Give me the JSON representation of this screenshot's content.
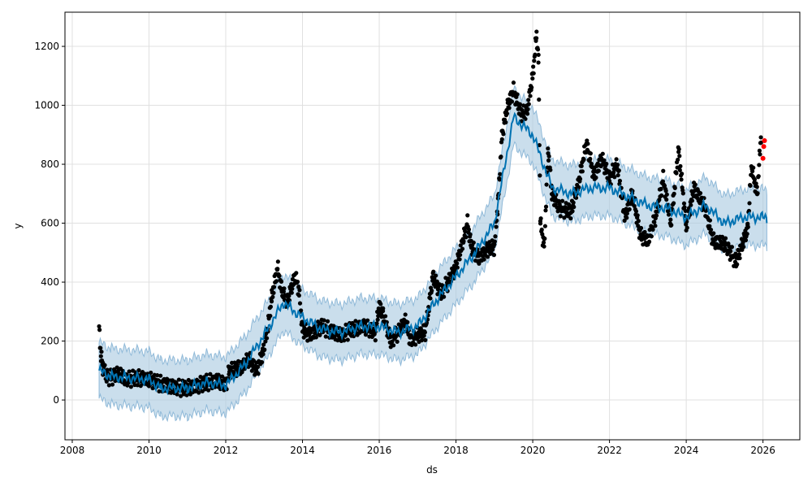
{
  "chart_data": {
    "type": "line",
    "title": "",
    "xlabel": "ds",
    "ylabel": "y",
    "xlim": [
      2007.81,
      2026.96
    ],
    "ylim": [
      -135,
      1316
    ],
    "grid": true,
    "xticks": [
      2008,
      2010,
      2012,
      2014,
      2016,
      2018,
      2020,
      2022,
      2024,
      2026
    ],
    "xtick_labels": [
      "2008",
      "2010",
      "2012",
      "2014",
      "2016",
      "2018",
      "2020",
      "2022",
      "2024",
      "2026"
    ],
    "yticks": [
      0,
      200,
      400,
      600,
      800,
      1000,
      1200
    ],
    "ytick_labels": [
      "0",
      "200",
      "400",
      "600",
      "800",
      "1000",
      "1200"
    ],
    "colors": {
      "observed": "#000000",
      "test": "#ff0000",
      "forecast": "#0072B2",
      "interval": "#a6c8e0"
    },
    "interval_halfwidth": 95,
    "observed": [
      [
        2008.7,
        240
      ],
      [
        2008.75,
        150
      ],
      [
        2008.8,
        110
      ],
      [
        2008.9,
        80
      ],
      [
        2009.0,
        75
      ],
      [
        2009.2,
        90
      ],
      [
        2009.4,
        70
      ],
      [
        2009.7,
        75
      ],
      [
        2010.0,
        70
      ],
      [
        2010.3,
        55
      ],
      [
        2010.6,
        45
      ],
      [
        2010.9,
        40
      ],
      [
        2011.2,
        45
      ],
      [
        2011.5,
        60
      ],
      [
        2011.8,
        65
      ],
      [
        2012.0,
        50
      ],
      [
        2012.1,
        100
      ],
      [
        2012.4,
        110
      ],
      [
        2012.6,
        140
      ],
      [
        2012.8,
        100
      ],
      [
        2012.95,
        150
      ],
      [
        2013.1,
        250
      ],
      [
        2013.2,
        350
      ],
      [
        2013.35,
        450
      ],
      [
        2013.45,
        380
      ],
      [
        2013.6,
        330
      ],
      [
        2013.8,
        420
      ],
      [
        2013.9,
        380
      ],
      [
        2014.0,
        240
      ],
      [
        2014.2,
        220
      ],
      [
        2014.5,
        250
      ],
      [
        2014.8,
        230
      ],
      [
        2015.0,
        220
      ],
      [
        2015.3,
        240
      ],
      [
        2015.6,
        250
      ],
      [
        2015.9,
        230
      ],
      [
        2016.0,
        320
      ],
      [
        2016.1,
        290
      ],
      [
        2016.3,
        200
      ],
      [
        2016.5,
        230
      ],
      [
        2016.7,
        270
      ],
      [
        2016.8,
        200
      ],
      [
        2017.0,
        220
      ],
      [
        2017.2,
        230
      ],
      [
        2017.4,
        420
      ],
      [
        2017.6,
        360
      ],
      [
        2017.8,
        400
      ],
      [
        2018.0,
        450
      ],
      [
        2018.2,
        550
      ],
      [
        2018.3,
        600
      ],
      [
        2018.4,
        520
      ],
      [
        2018.6,
        480
      ],
      [
        2018.8,
        510
      ],
      [
        2019.0,
        520
      ],
      [
        2019.1,
        680
      ],
      [
        2019.2,
        900
      ],
      [
        2019.35,
        1000
      ],
      [
        2019.5,
        1050
      ],
      [
        2019.7,
        970
      ],
      [
        2019.85,
        980
      ],
      [
        2020.0,
        1100
      ],
      [
        2020.1,
        1240
      ],
      [
        2020.15,
        1150
      ],
      [
        2020.2,
        600
      ],
      [
        2020.3,
        520
      ],
      [
        2020.4,
        850
      ],
      [
        2020.5,
        700
      ],
      [
        2020.7,
        650
      ],
      [
        2021.0,
        640
      ],
      [
        2021.2,
        740
      ],
      [
        2021.4,
        870
      ],
      [
        2021.6,
        760
      ],
      [
        2021.8,
        820
      ],
      [
        2022.0,
        750
      ],
      [
        2022.2,
        800
      ],
      [
        2022.4,
        620
      ],
      [
        2022.6,
        700
      ],
      [
        2022.8,
        560
      ],
      [
        2023.0,
        540
      ],
      [
        2023.2,
        620
      ],
      [
        2023.4,
        750
      ],
      [
        2023.6,
        600
      ],
      [
        2023.8,
        850
      ],
      [
        2024.0,
        590
      ],
      [
        2024.2,
        720
      ],
      [
        2024.5,
        650
      ],
      [
        2024.7,
        540
      ],
      [
        2025.0,
        530
      ],
      [
        2025.3,
        470
      ],
      [
        2025.6,
        580
      ],
      [
        2025.7,
        790
      ],
      [
        2025.85,
        700
      ],
      [
        2025.95,
        900
      ]
    ],
    "test_observed": [
      [
        2026.0,
        820
      ],
      [
        2026.02,
        860
      ],
      [
        2026.04,
        880
      ]
    ],
    "forecast": [
      [
        2008.7,
        100
      ],
      [
        2009.0,
        80
      ],
      [
        2010.0,
        70
      ],
      [
        2010.3,
        40
      ],
      [
        2011.0,
        40
      ],
      [
        2011.5,
        60
      ],
      [
        2012.0,
        50
      ],
      [
        2012.5,
        120
      ],
      [
        2013.0,
        220
      ],
      [
        2013.5,
        330
      ],
      [
        2014.0,
        280
      ],
      [
        2014.5,
        240
      ],
      [
        2015.0,
        230
      ],
      [
        2015.5,
        250
      ],
      [
        2016.0,
        250
      ],
      [
        2016.5,
        230
      ],
      [
        2017.0,
        250
      ],
      [
        2017.5,
        340
      ],
      [
        2018.0,
        420
      ],
      [
        2018.5,
        500
      ],
      [
        2019.0,
        600
      ],
      [
        2019.5,
        960
      ],
      [
        2020.0,
        900
      ],
      [
        2020.5,
        720
      ],
      [
        2021.0,
        700
      ],
      [
        2021.5,
        720
      ],
      [
        2022.0,
        720
      ],
      [
        2022.5,
        690
      ],
      [
        2023.0,
        660
      ],
      [
        2023.5,
        650
      ],
      [
        2024.0,
        620
      ],
      [
        2024.5,
        660
      ],
      [
        2025.0,
        600
      ],
      [
        2025.5,
        620
      ],
      [
        2026.0,
        620
      ],
      [
        2026.1,
        620
      ]
    ]
  }
}
